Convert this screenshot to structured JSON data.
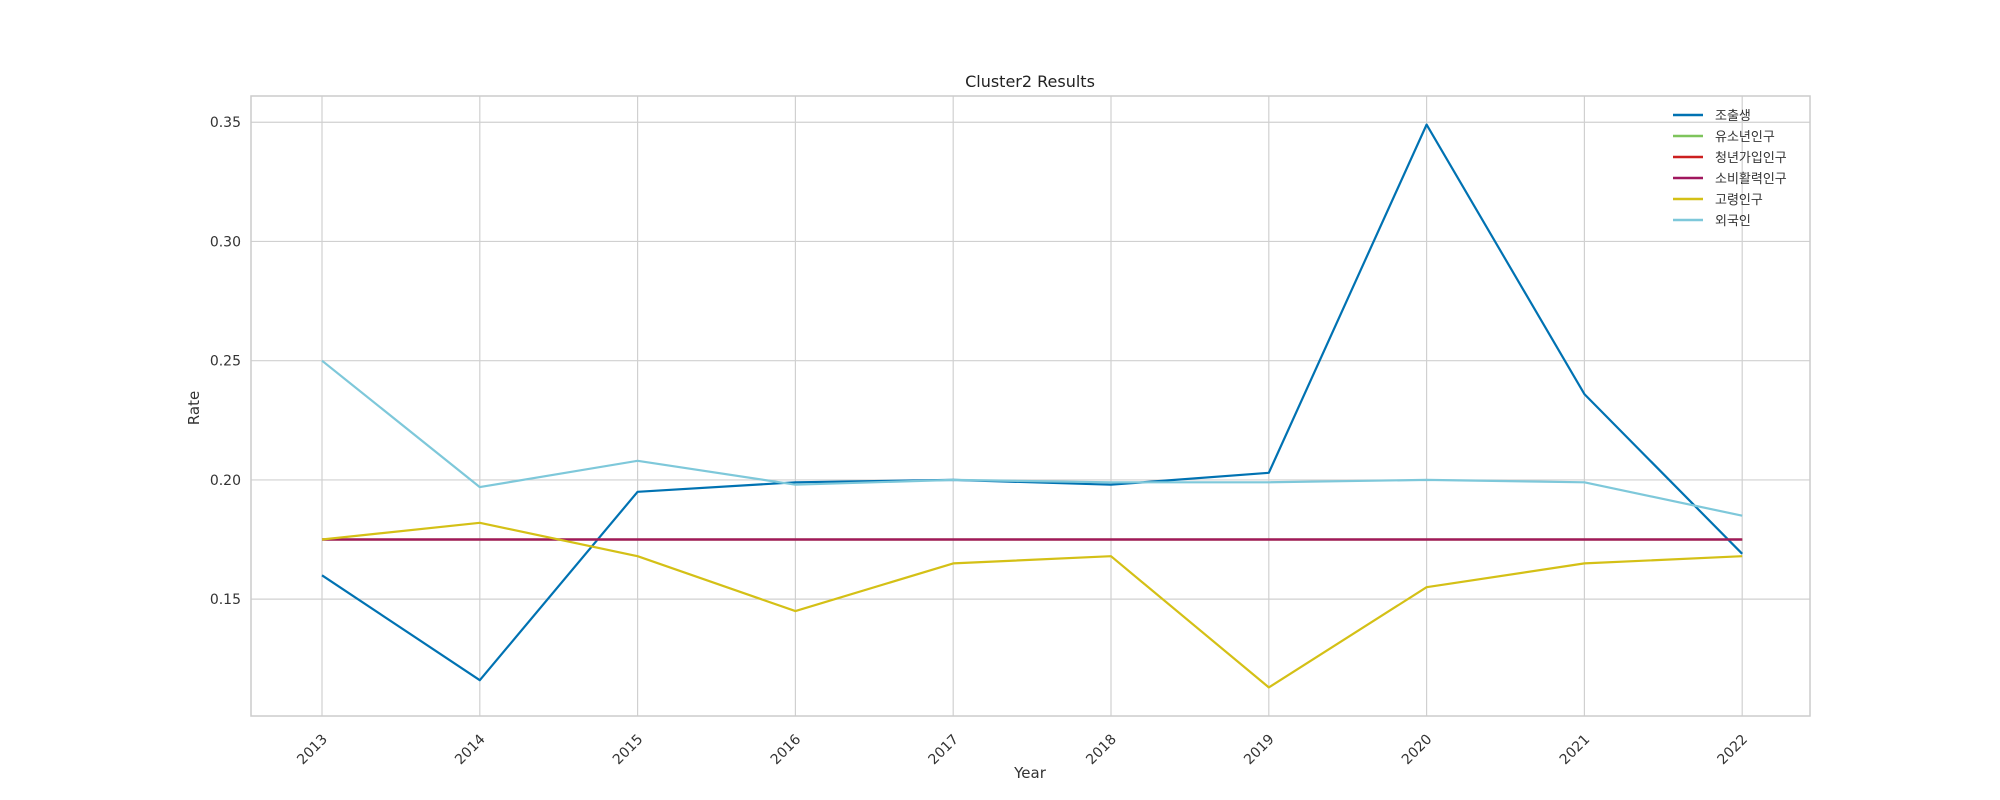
{
  "chart_data": {
    "type": "line",
    "title": "Cluster2 Results",
    "xlabel": "Year",
    "ylabel": "Rate",
    "categories": [
      "2013",
      "2014",
      "2015",
      "2016",
      "2017",
      "2018",
      "2019",
      "2020",
      "2021",
      "2022"
    ],
    "ylim": [
      0.101,
      0.361
    ],
    "yticks": [
      0.15,
      0.2,
      0.25,
      0.3,
      0.35
    ],
    "ytick_labels": [
      "0.15",
      "0.20",
      "0.25",
      "0.30",
      "0.35"
    ],
    "grid": true,
    "legend_position": "top-right",
    "series": [
      {
        "name": "조출생",
        "color": "#0072b2",
        "values": [
          0.16,
          0.116,
          0.195,
          0.199,
          0.2,
          0.198,
          0.203,
          0.349,
          0.236,
          0.169
        ]
      },
      {
        "name": "유소년인구",
        "color": "#7ec45c",
        "values": [
          0.175,
          0.175,
          0.175,
          0.175,
          0.175,
          0.175,
          0.175,
          0.175,
          0.175,
          0.175
        ]
      },
      {
        "name": "청년가입인구",
        "color": "#cc1f1f",
        "values": [
          0.175,
          0.175,
          0.175,
          0.175,
          0.175,
          0.175,
          0.175,
          0.175,
          0.175,
          0.175
        ]
      },
      {
        "name": "소비활력인구",
        "color": "#a0175e",
        "values": [
          0.175,
          0.175,
          0.175,
          0.175,
          0.175,
          0.175,
          0.175,
          0.175,
          0.175,
          0.175
        ]
      },
      {
        "name": "고령인구",
        "color": "#d4c016",
        "values": [
          0.175,
          0.182,
          0.168,
          0.145,
          0.165,
          0.168,
          0.113,
          0.155,
          0.165,
          0.168
        ]
      },
      {
        "name": "외국인",
        "color": "#7ec8da",
        "values": [
          0.25,
          0.197,
          0.208,
          0.198,
          0.2,
          0.199,
          0.199,
          0.2,
          0.199,
          0.185
        ]
      }
    ]
  }
}
